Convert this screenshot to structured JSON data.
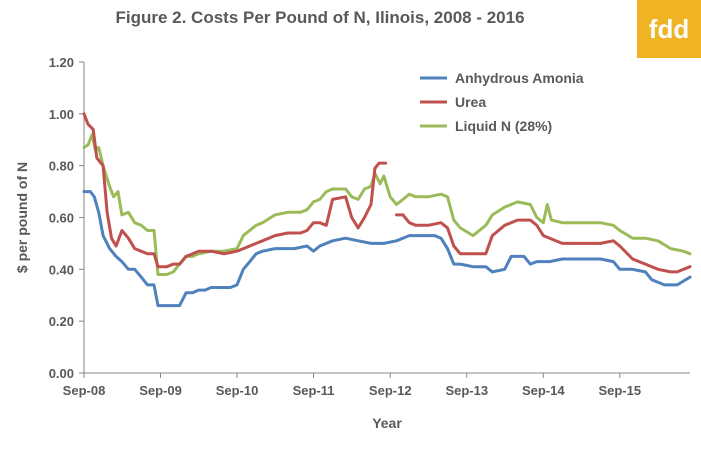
{
  "logo": {
    "text": "fdd",
    "color": "#f0b323"
  },
  "chart_data": {
    "type": "line",
    "title": "Figure 2.  Costs Per Pound of N, Ilinois, 2008 - 2016",
    "xlabel": "Year",
    "ylabel": "$ per pound of N",
    "ylim": [
      0,
      1.2
    ],
    "yticks": [
      "0.00",
      "0.20",
      "0.40",
      "0.60",
      "0.80",
      "1.00",
      "1.20"
    ],
    "xlim": [
      "2008-09-01",
      "2016-08-01"
    ],
    "xticks": [
      {
        "date": "2008-09-01",
        "label": "Sep-08"
      },
      {
        "date": "2009-09-01",
        "label": "Sep-09"
      },
      {
        "date": "2010-09-01",
        "label": "Sep-10"
      },
      {
        "date": "2011-09-01",
        "label": "Sep-11"
      },
      {
        "date": "2012-09-01",
        "label": "Sep-12"
      },
      {
        "date": "2013-09-01",
        "label": "Sep-13"
      },
      {
        "date": "2014-09-01",
        "label": "Sep-14"
      },
      {
        "date": "2015-09-01",
        "label": "Sep-15"
      }
    ],
    "grid": false,
    "legend": "top-right",
    "series": [
      {
        "name": "Anhydrous Amonia",
        "color": "#4f81bd",
        "points": [
          [
            "2008-09-01",
            0.7
          ],
          [
            "2008-10-01",
            0.7
          ],
          [
            "2008-10-20",
            0.68
          ],
          [
            "2008-11-10",
            0.62
          ],
          [
            "2008-12-01",
            0.53
          ],
          [
            "2009-01-01",
            0.48
          ],
          [
            "2009-02-01",
            0.45
          ],
          [
            "2009-03-01",
            0.43
          ],
          [
            "2009-04-01",
            0.4
          ],
          [
            "2009-05-01",
            0.4
          ],
          [
            "2009-06-01",
            0.37
          ],
          [
            "2009-07-01",
            0.34
          ],
          [
            "2009-08-01",
            0.34
          ],
          [
            "2009-08-20",
            0.26
          ],
          [
            "2009-10-01",
            0.26
          ],
          [
            "2009-11-01",
            0.26
          ],
          [
            "2009-12-01",
            0.26
          ],
          [
            "2010-01-01",
            0.31
          ],
          [
            "2010-02-01",
            0.31
          ],
          [
            "2010-03-01",
            0.32
          ],
          [
            "2010-04-01",
            0.32
          ],
          [
            "2010-05-01",
            0.33
          ],
          [
            "2010-06-01",
            0.33
          ],
          [
            "2010-07-01",
            0.33
          ],
          [
            "2010-08-01",
            0.33
          ],
          [
            "2010-09-01",
            0.34
          ],
          [
            "2010-10-01",
            0.4
          ],
          [
            "2010-11-01",
            0.43
          ],
          [
            "2010-12-01",
            0.46
          ],
          [
            "2011-01-01",
            0.47
          ],
          [
            "2011-03-01",
            0.48
          ],
          [
            "2011-06-01",
            0.48
          ],
          [
            "2011-08-01",
            0.49
          ],
          [
            "2011-09-01",
            0.47
          ],
          [
            "2011-10-01",
            0.49
          ],
          [
            "2011-12-01",
            0.51
          ],
          [
            "2012-02-01",
            0.52
          ],
          [
            "2012-04-01",
            0.51
          ],
          [
            "2012-06-01",
            0.5
          ],
          [
            "2012-08-01",
            0.5
          ],
          [
            "2012-10-01",
            0.51
          ],
          [
            "2012-12-01",
            0.53
          ],
          [
            "2013-02-01",
            0.53
          ],
          [
            "2013-04-01",
            0.53
          ],
          [
            "2013-05-01",
            0.52
          ],
          [
            "2013-06-01",
            0.48
          ],
          [
            "2013-07-01",
            0.42
          ],
          [
            "2013-08-01",
            0.42
          ],
          [
            "2013-10-01",
            0.41
          ],
          [
            "2013-12-01",
            0.41
          ],
          [
            "2014-01-01",
            0.39
          ],
          [
            "2014-03-01",
            0.4
          ],
          [
            "2014-04-01",
            0.45
          ],
          [
            "2014-06-01",
            0.45
          ],
          [
            "2014-07-01",
            0.42
          ],
          [
            "2014-08-01",
            0.43
          ],
          [
            "2014-10-01",
            0.43
          ],
          [
            "2014-12-01",
            0.44
          ],
          [
            "2015-02-01",
            0.44
          ],
          [
            "2015-04-01",
            0.44
          ],
          [
            "2015-06-01",
            0.44
          ],
          [
            "2015-08-01",
            0.43
          ],
          [
            "2015-09-01",
            0.4
          ],
          [
            "2015-11-01",
            0.4
          ],
          [
            "2016-01-01",
            0.39
          ],
          [
            "2016-02-01",
            0.36
          ],
          [
            "2016-04-01",
            0.34
          ],
          [
            "2016-06-01",
            0.34
          ],
          [
            "2016-08-01",
            0.37
          ]
        ]
      },
      {
        "name": "Urea",
        "color": "#c0504d",
        "points": [
          [
            "2008-09-01",
            1.0
          ],
          [
            "2008-09-20",
            0.96
          ],
          [
            "2008-10-15",
            0.94
          ],
          [
            "2008-11-01",
            0.83
          ],
          [
            "2008-12-01",
            0.8
          ],
          [
            "2008-12-20",
            0.62
          ],
          [
            "2009-01-10",
            0.52
          ],
          [
            "2009-02-01",
            0.49
          ],
          [
            "2009-03-01",
            0.55
          ],
          [
            "2009-04-01",
            0.52
          ],
          [
            "2009-05-01",
            0.48
          ],
          [
            "2009-06-01",
            0.47
          ],
          [
            "2009-07-01",
            0.46
          ],
          [
            "2009-08-01",
            0.46
          ],
          [
            "2009-08-20",
            0.41
          ],
          [
            "2009-10-01",
            0.41
          ],
          [
            "2009-11-01",
            0.42
          ],
          [
            "2009-12-01",
            0.42
          ],
          [
            "2010-01-01",
            0.45
          ],
          [
            "2010-02-01",
            0.46
          ],
          [
            "2010-03-01",
            0.47
          ],
          [
            "2010-05-01",
            0.47
          ],
          [
            "2010-07-01",
            0.46
          ],
          [
            "2010-09-01",
            0.47
          ],
          [
            "2010-10-01",
            0.48
          ],
          [
            "2010-12-01",
            0.5
          ],
          [
            "2011-01-01",
            0.51
          ],
          [
            "2011-03-01",
            0.53
          ],
          [
            "2011-05-01",
            0.54
          ],
          [
            "2011-07-01",
            0.54
          ],
          [
            "2011-08-01",
            0.55
          ],
          [
            "2011-09-01",
            0.58
          ],
          [
            "2011-10-01",
            0.58
          ],
          [
            "2011-11-01",
            0.57
          ],
          [
            "2011-12-01",
            0.67
          ],
          [
            "2012-02-01",
            0.68
          ],
          [
            "2012-03-01",
            0.6
          ],
          [
            "2012-04-01",
            0.56
          ],
          [
            "2012-05-01",
            0.6
          ],
          [
            "2012-06-01",
            0.65
          ],
          [
            "2012-06-20",
            0.79
          ],
          [
            "2012-07-10",
            0.81
          ],
          [
            "2012-08-10",
            0.81
          ]
        ],
        "points_b": [
          [
            "2012-10-01",
            0.61
          ],
          [
            "2012-11-01",
            0.61
          ],
          [
            "2012-12-01",
            0.58
          ],
          [
            "2013-01-01",
            0.57
          ],
          [
            "2013-03-01",
            0.57
          ],
          [
            "2013-05-01",
            0.58
          ],
          [
            "2013-06-01",
            0.56
          ],
          [
            "2013-07-01",
            0.49
          ],
          [
            "2013-08-01",
            0.46
          ],
          [
            "2013-10-01",
            0.46
          ],
          [
            "2013-12-01",
            0.46
          ],
          [
            "2014-01-01",
            0.53
          ],
          [
            "2014-03-01",
            0.57
          ],
          [
            "2014-05-01",
            0.59
          ],
          [
            "2014-07-01",
            0.59
          ],
          [
            "2014-08-01",
            0.57
          ],
          [
            "2014-09-01",
            0.53
          ],
          [
            "2014-10-01",
            0.52
          ],
          [
            "2014-12-01",
            0.5
          ],
          [
            "2015-02-01",
            0.5
          ],
          [
            "2015-04-01",
            0.5
          ],
          [
            "2015-06-01",
            0.5
          ],
          [
            "2015-08-01",
            0.51
          ],
          [
            "2015-09-01",
            0.49
          ],
          [
            "2015-11-01",
            0.44
          ],
          [
            "2016-01-01",
            0.42
          ],
          [
            "2016-03-01",
            0.4
          ],
          [
            "2016-05-01",
            0.39
          ],
          [
            "2016-06-01",
            0.39
          ],
          [
            "2016-08-01",
            0.41
          ]
        ]
      },
      {
        "name": "Liquid N (28%)",
        "color": "#9bbb59",
        "points": [
          [
            "2008-09-01",
            0.87
          ],
          [
            "2008-09-20",
            0.88
          ],
          [
            "2008-10-10",
            0.92
          ],
          [
            "2008-10-25",
            0.86
          ],
          [
            "2008-11-10",
            0.87
          ],
          [
            "2008-12-01",
            0.8
          ],
          [
            "2009-01-01",
            0.72
          ],
          [
            "2009-01-20",
            0.68
          ],
          [
            "2009-02-10",
            0.7
          ],
          [
            "2009-03-01",
            0.61
          ],
          [
            "2009-04-01",
            0.62
          ],
          [
            "2009-05-01",
            0.58
          ],
          [
            "2009-06-01",
            0.57
          ],
          [
            "2009-07-01",
            0.55
          ],
          [
            "2009-08-01",
            0.55
          ],
          [
            "2009-08-20",
            0.38
          ],
          [
            "2009-10-01",
            0.38
          ],
          [
            "2009-11-01",
            0.39
          ],
          [
            "2009-12-01",
            0.42
          ],
          [
            "2010-01-01",
            0.45
          ],
          [
            "2010-02-01",
            0.45
          ],
          [
            "2010-03-01",
            0.46
          ],
          [
            "2010-05-01",
            0.47
          ],
          [
            "2010-07-01",
            0.47
          ],
          [
            "2010-09-01",
            0.48
          ],
          [
            "2010-10-01",
            0.53
          ],
          [
            "2010-12-01",
            0.57
          ],
          [
            "2011-01-01",
            0.58
          ],
          [
            "2011-03-01",
            0.61
          ],
          [
            "2011-05-01",
            0.62
          ],
          [
            "2011-07-01",
            0.62
          ],
          [
            "2011-08-01",
            0.63
          ],
          [
            "2011-09-01",
            0.66
          ],
          [
            "2011-10-01",
            0.67
          ],
          [
            "2011-11-01",
            0.7
          ],
          [
            "2011-12-01",
            0.71
          ],
          [
            "2012-02-01",
            0.71
          ],
          [
            "2012-03-01",
            0.68
          ],
          [
            "2012-04-01",
            0.67
          ],
          [
            "2012-05-01",
            0.71
          ],
          [
            "2012-06-01",
            0.72
          ],
          [
            "2012-06-20",
            0.77
          ],
          [
            "2012-07-15",
            0.73
          ],
          [
            "2012-08-01",
            0.76
          ],
          [
            "2012-09-01",
            0.68
          ],
          [
            "2012-10-01",
            0.65
          ],
          [
            "2012-11-01",
            0.67
          ],
          [
            "2012-12-01",
            0.69
          ],
          [
            "2013-01-01",
            0.68
          ],
          [
            "2013-03-01",
            0.68
          ],
          [
            "2013-05-01",
            0.69
          ],
          [
            "2013-06-01",
            0.68
          ],
          [
            "2013-07-01",
            0.59
          ],
          [
            "2013-08-01",
            0.56
          ],
          [
            "2013-10-01",
            0.53
          ],
          [
            "2013-12-01",
            0.57
          ],
          [
            "2014-01-01",
            0.61
          ],
          [
            "2014-03-01",
            0.64
          ],
          [
            "2014-05-01",
            0.66
          ],
          [
            "2014-07-01",
            0.65
          ],
          [
            "2014-08-01",
            0.6
          ],
          [
            "2014-09-01",
            0.58
          ],
          [
            "2014-09-20",
            0.65
          ],
          [
            "2014-10-10",
            0.59
          ],
          [
            "2014-12-01",
            0.58
          ],
          [
            "2015-02-01",
            0.58
          ],
          [
            "2015-04-01",
            0.58
          ],
          [
            "2015-06-01",
            0.58
          ],
          [
            "2015-08-01",
            0.57
          ],
          [
            "2015-09-01",
            0.55
          ],
          [
            "2015-11-01",
            0.52
          ],
          [
            "2016-01-01",
            0.52
          ],
          [
            "2016-03-01",
            0.51
          ],
          [
            "2016-05-01",
            0.48
          ],
          [
            "2016-07-01",
            0.47
          ],
          [
            "2016-08-01",
            0.46
          ]
        ]
      }
    ]
  }
}
